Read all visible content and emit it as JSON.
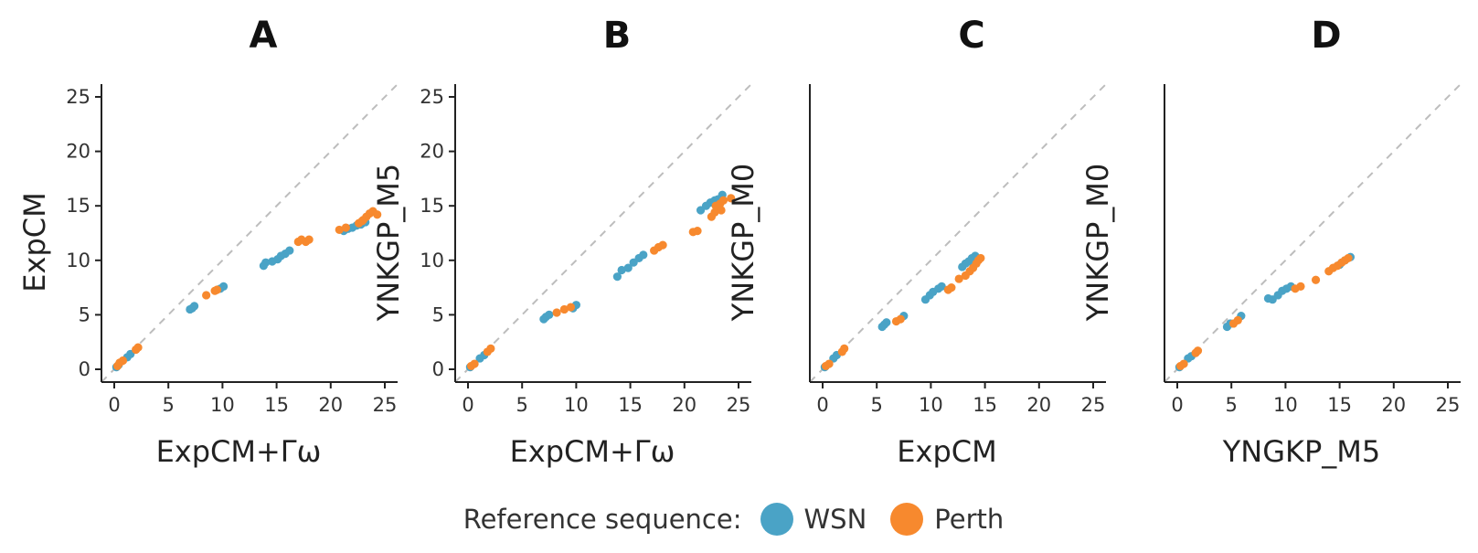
{
  "colors": {
    "WSN": "#4aa3c6",
    "Perth": "#f7892e",
    "identity_line": "#bdbdbd",
    "axis": "#222222"
  },
  "legend": {
    "title": "Reference sequence:",
    "items": [
      {
        "name": "WSN",
        "color": "#4aa3c6"
      },
      {
        "name": "Perth",
        "color": "#f7892e"
      }
    ]
  },
  "chart_data": [
    {
      "type": "scatter",
      "title": "A",
      "xlabel": "ExpCM+Γω",
      "ylabel": "ExpCM",
      "xlim": [
        0,
        25
      ],
      "ylim": [
        0,
        25
      ],
      "xticks": [
        0,
        5,
        10,
        15,
        20,
        25
      ],
      "yticks": [
        0,
        5,
        10,
        15,
        20,
        25
      ],
      "identity_line": true,
      "series": [
        {
          "name": "WSN",
          "points": [
            [
              0.2,
              0.2
            ],
            [
              0.4,
              0.4
            ],
            [
              1.2,
              1.1
            ],
            [
              1.5,
              1.4
            ],
            [
              7.0,
              5.5
            ],
            [
              7.2,
              5.6
            ],
            [
              7.4,
              5.8
            ],
            [
              9.8,
              7.4
            ],
            [
              10.1,
              7.6
            ],
            [
              13.8,
              9.5
            ],
            [
              14.0,
              9.8
            ],
            [
              14.6,
              9.9
            ],
            [
              15.1,
              10.1
            ],
            [
              15.4,
              10.4
            ],
            [
              15.8,
              10.6
            ],
            [
              16.2,
              10.9
            ],
            [
              21.2,
              12.7
            ],
            [
              21.6,
              12.9
            ],
            [
              22.0,
              13.0
            ],
            [
              22.4,
              13.2
            ],
            [
              22.8,
              13.3
            ],
            [
              23.2,
              13.5
            ]
          ]
        },
        {
          "name": "Perth",
          "points": [
            [
              0.3,
              0.3
            ],
            [
              0.5,
              0.6
            ],
            [
              0.8,
              0.8
            ],
            [
              2.0,
              1.8
            ],
            [
              2.2,
              2.0
            ],
            [
              8.5,
              6.8
            ],
            [
              9.3,
              7.2
            ],
            [
              9.5,
              7.3
            ],
            [
              17.0,
              11.7
            ],
            [
              17.3,
              11.9
            ],
            [
              17.7,
              11.7
            ],
            [
              18.0,
              11.9
            ],
            [
              20.8,
              12.8
            ],
            [
              21.4,
              13.0
            ],
            [
              22.6,
              13.4
            ],
            [
              23.0,
              13.7
            ],
            [
              23.3,
              14.0
            ],
            [
              23.6,
              14.3
            ],
            [
              23.9,
              14.5
            ],
            [
              24.3,
              14.2
            ],
            [
              22.9,
              13.6
            ]
          ]
        }
      ]
    },
    {
      "type": "scatter",
      "title": "B",
      "xlabel": "ExpCM+Γω",
      "ylabel": "YNKGP_M5",
      "xlim": [
        0,
        25
      ],
      "ylim": [
        0,
        25
      ],
      "xticks": [
        0,
        5,
        10,
        15,
        20,
        25
      ],
      "yticks": [
        0,
        5,
        10,
        15,
        20,
        25
      ],
      "identity_line": true,
      "series": [
        {
          "name": "WSN",
          "points": [
            [
              0.2,
              0.2
            ],
            [
              1.1,
              1.0
            ],
            [
              1.5,
              1.3
            ],
            [
              7.0,
              4.6
            ],
            [
              7.2,
              4.8
            ],
            [
              7.5,
              5.0
            ],
            [
              9.7,
              5.6
            ],
            [
              10.0,
              5.9
            ],
            [
              13.8,
              8.5
            ],
            [
              14.2,
              9.1
            ],
            [
              14.8,
              9.3
            ],
            [
              15.3,
              9.8
            ],
            [
              15.8,
              10.2
            ],
            [
              16.2,
              10.5
            ],
            [
              21.5,
              14.6
            ],
            [
              22.0,
              15.0
            ],
            [
              22.4,
              15.3
            ],
            [
              22.8,
              15.5
            ],
            [
              23.1,
              15.6
            ],
            [
              23.5,
              16.0
            ]
          ]
        },
        {
          "name": "Perth",
          "points": [
            [
              0.3,
              0.3
            ],
            [
              0.6,
              0.5
            ],
            [
              1.8,
              1.6
            ],
            [
              2.1,
              1.9
            ],
            [
              8.2,
              5.2
            ],
            [
              8.9,
              5.5
            ],
            [
              9.5,
              5.7
            ],
            [
              17.2,
              10.9
            ],
            [
              17.6,
              11.2
            ],
            [
              18.0,
              11.4
            ],
            [
              20.8,
              12.6
            ],
            [
              21.2,
              12.7
            ],
            [
              22.5,
              14.0
            ],
            [
              22.8,
              14.4
            ],
            [
              23.0,
              14.8
            ],
            [
              23.3,
              15.2
            ],
            [
              23.6,
              15.5
            ],
            [
              24.3,
              15.7
            ],
            [
              22.9,
              15.0
            ],
            [
              23.4,
              14.6
            ]
          ]
        }
      ]
    },
    {
      "type": "scatter",
      "title": "C",
      "xlabel": "ExpCM",
      "ylabel": "YNKGP_M0",
      "xlim": [
        0,
        25
      ],
      "ylim": [
        0,
        25
      ],
      "xticks": [
        0,
        5,
        10,
        15,
        20,
        25
      ],
      "yticks": [],
      "identity_line": true,
      "series": [
        {
          "name": "WSN",
          "points": [
            [
              0.2,
              0.2
            ],
            [
              1.0,
              1.0
            ],
            [
              1.3,
              1.3
            ],
            [
              5.5,
              3.9
            ],
            [
              5.7,
              4.1
            ],
            [
              5.9,
              4.3
            ],
            [
              7.5,
              4.9
            ],
            [
              9.5,
              6.4
            ],
            [
              9.9,
              6.8
            ],
            [
              10.2,
              7.1
            ],
            [
              10.7,
              7.4
            ],
            [
              11.0,
              7.6
            ],
            [
              12.9,
              9.4
            ],
            [
              13.2,
              9.7
            ],
            [
              13.5,
              9.9
            ],
            [
              13.8,
              10.2
            ],
            [
              14.1,
              10.4
            ]
          ]
        },
        {
          "name": "Perth",
          "points": [
            [
              0.3,
              0.3
            ],
            [
              0.6,
              0.5
            ],
            [
              1.8,
              1.6
            ],
            [
              2.0,
              1.9
            ],
            [
              6.8,
              4.4
            ],
            [
              7.2,
              4.6
            ],
            [
              11.6,
              7.3
            ],
            [
              11.9,
              7.5
            ],
            [
              12.6,
              8.3
            ],
            [
              13.2,
              8.6
            ],
            [
              13.6,
              9.0
            ],
            [
              13.9,
              9.3
            ],
            [
              14.2,
              9.7
            ],
            [
              14.4,
              10.0
            ],
            [
              14.6,
              10.2
            ]
          ]
        }
      ]
    },
    {
      "type": "scatter",
      "title": "D",
      "xlabel": "YNGKP_M5",
      "ylabel": "YNKGP_M0",
      "xlim": [
        0,
        25
      ],
      "ylim": [
        0,
        25
      ],
      "xticks": [
        0,
        5,
        10,
        15,
        20,
        25
      ],
      "yticks": [],
      "identity_line": true,
      "series": [
        {
          "name": "WSN",
          "points": [
            [
              0.2,
              0.2
            ],
            [
              1.0,
              1.0
            ],
            [
              1.3,
              1.2
            ],
            [
              4.6,
              3.9
            ],
            [
              4.9,
              4.2
            ],
            [
              5.9,
              4.9
            ],
            [
              8.4,
              6.5
            ],
            [
              8.8,
              6.4
            ],
            [
              9.3,
              6.8
            ],
            [
              9.7,
              7.2
            ],
            [
              10.1,
              7.4
            ],
            [
              10.5,
              7.6
            ],
            [
              15.0,
              9.6
            ],
            [
              15.5,
              10.0
            ],
            [
              16.0,
              10.3
            ]
          ]
        },
        {
          "name": "Perth",
          "points": [
            [
              0.3,
              0.3
            ],
            [
              0.6,
              0.5
            ],
            [
              1.7,
              1.5
            ],
            [
              1.9,
              1.7
            ],
            [
              5.2,
              4.2
            ],
            [
              5.6,
              4.5
            ],
            [
              10.9,
              7.4
            ],
            [
              11.4,
              7.6
            ],
            [
              12.8,
              8.2
            ],
            [
              14.0,
              9.0
            ],
            [
              14.4,
              9.3
            ],
            [
              14.8,
              9.5
            ],
            [
              15.2,
              9.8
            ],
            [
              15.5,
              10.0
            ],
            [
              15.8,
              10.2
            ]
          ]
        }
      ]
    }
  ]
}
